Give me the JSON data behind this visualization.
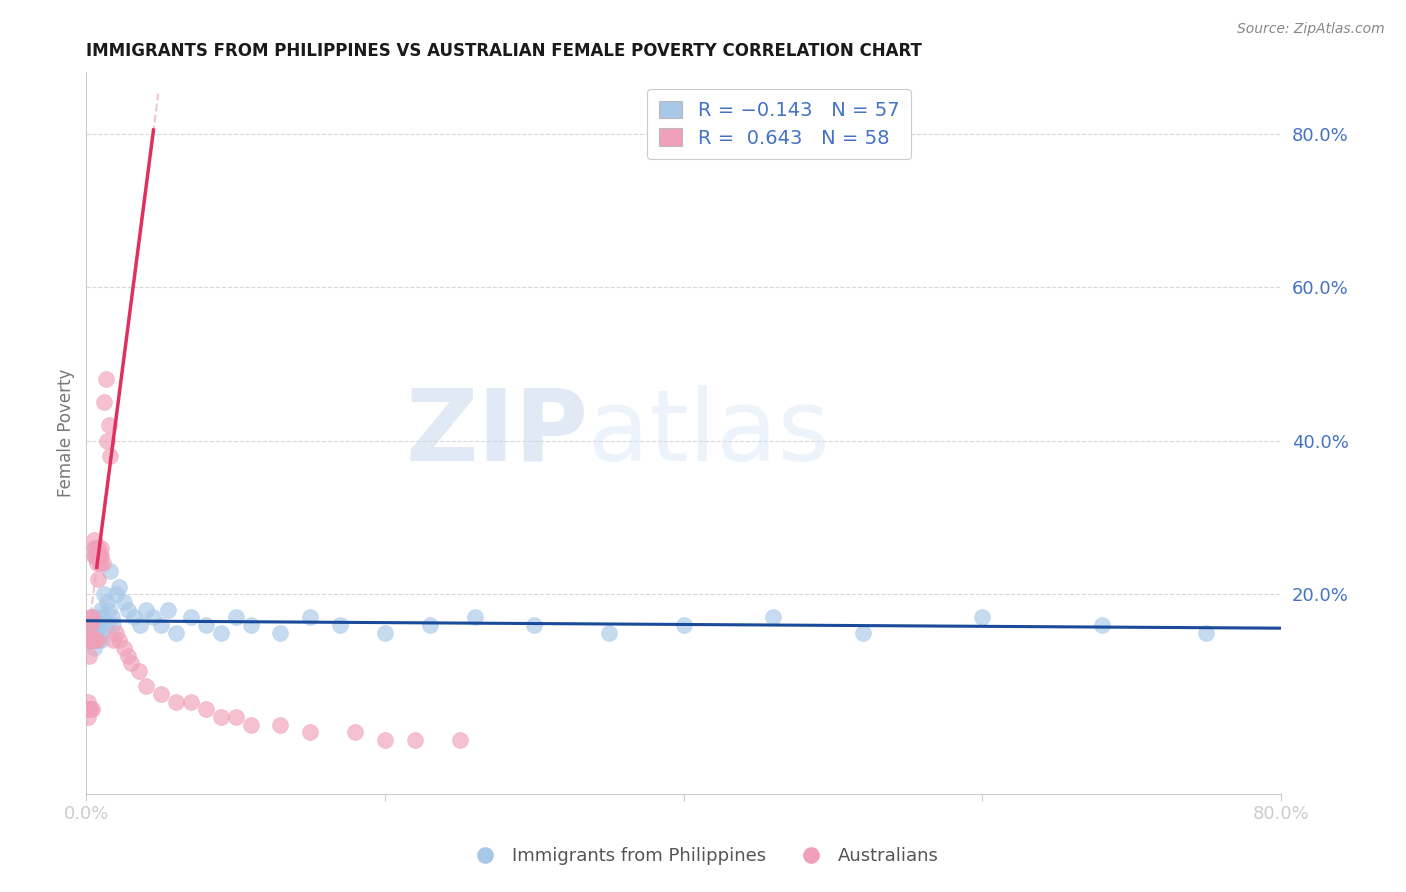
{
  "title": "IMMIGRANTS FROM PHILIPPINES VS AUSTRALIAN FEMALE POVERTY CORRELATION CHART",
  "source": "Source: ZipAtlas.com",
  "ylabel": "Female Poverty",
  "ytick_vals": [
    0.2,
    0.4,
    0.6,
    0.8
  ],
  "ytick_labels": [
    "20.0%",
    "40.0%",
    "60.0%",
    "80.0%"
  ],
  "xlim": [
    0.0,
    0.8
  ],
  "ylim": [
    -0.06,
    0.88
  ],
  "blue_color": "#a8c8e8",
  "pink_color": "#f0a0b8",
  "blue_line_color": "#1a4a9a",
  "pink_line_color": "#e03060",
  "pink_dash_color": "#e8a0b8",
  "grid_color": "#d8d8d8",
  "watermark_zip": "ZIP",
  "watermark_atlas": "atlas",
  "blue_scatter_x": [
    0.001,
    0.002,
    0.002,
    0.003,
    0.003,
    0.004,
    0.004,
    0.005,
    0.005,
    0.006,
    0.006,
    0.007,
    0.007,
    0.008,
    0.008,
    0.009,
    0.009,
    0.01,
    0.01,
    0.011,
    0.012,
    0.013,
    0.014,
    0.015,
    0.016,
    0.017,
    0.018,
    0.02,
    0.022,
    0.025,
    0.028,
    0.032,
    0.036,
    0.04,
    0.045,
    0.05,
    0.055,
    0.06,
    0.07,
    0.08,
    0.09,
    0.1,
    0.11,
    0.13,
    0.15,
    0.17,
    0.2,
    0.23,
    0.26,
    0.3,
    0.35,
    0.4,
    0.46,
    0.52,
    0.6,
    0.68,
    0.75
  ],
  "blue_scatter_y": [
    0.16,
    0.15,
    0.14,
    0.16,
    0.17,
    0.15,
    0.14,
    0.16,
    0.13,
    0.15,
    0.14,
    0.16,
    0.15,
    0.17,
    0.14,
    0.16,
    0.15,
    0.18,
    0.14,
    0.17,
    0.2,
    0.16,
    0.19,
    0.18,
    0.23,
    0.17,
    0.16,
    0.2,
    0.21,
    0.19,
    0.18,
    0.17,
    0.16,
    0.18,
    0.17,
    0.16,
    0.18,
    0.15,
    0.17,
    0.16,
    0.15,
    0.17,
    0.16,
    0.15,
    0.17,
    0.16,
    0.15,
    0.16,
    0.17,
    0.16,
    0.15,
    0.16,
    0.17,
    0.15,
    0.17,
    0.16,
    0.15
  ],
  "pink_scatter_x": [
    0.001,
    0.001,
    0.001,
    0.002,
    0.002,
    0.002,
    0.002,
    0.003,
    0.003,
    0.003,
    0.003,
    0.004,
    0.004,
    0.004,
    0.005,
    0.005,
    0.005,
    0.005,
    0.006,
    0.006,
    0.006,
    0.007,
    0.007,
    0.007,
    0.008,
    0.008,
    0.008,
    0.009,
    0.009,
    0.01,
    0.01,
    0.011,
    0.012,
    0.013,
    0.014,
    0.015,
    0.016,
    0.018,
    0.02,
    0.022,
    0.025,
    0.028,
    0.03,
    0.035,
    0.04,
    0.05,
    0.06,
    0.07,
    0.08,
    0.09,
    0.1,
    0.11,
    0.13,
    0.15,
    0.18,
    0.2,
    0.22,
    0.25
  ],
  "pink_scatter_y": [
    0.04,
    0.06,
    0.05,
    0.12,
    0.14,
    0.16,
    0.05,
    0.14,
    0.16,
    0.17,
    0.05,
    0.14,
    0.17,
    0.05,
    0.25,
    0.26,
    0.27,
    0.14,
    0.25,
    0.26,
    0.14,
    0.24,
    0.25,
    0.14,
    0.26,
    0.25,
    0.22,
    0.24,
    0.25,
    0.25,
    0.26,
    0.24,
    0.45,
    0.48,
    0.4,
    0.42,
    0.38,
    0.14,
    0.15,
    0.14,
    0.13,
    0.12,
    0.11,
    0.1,
    0.08,
    0.07,
    0.06,
    0.06,
    0.05,
    0.04,
    0.04,
    0.03,
    0.03,
    0.02,
    0.02,
    0.01,
    0.01,
    0.01
  ]
}
